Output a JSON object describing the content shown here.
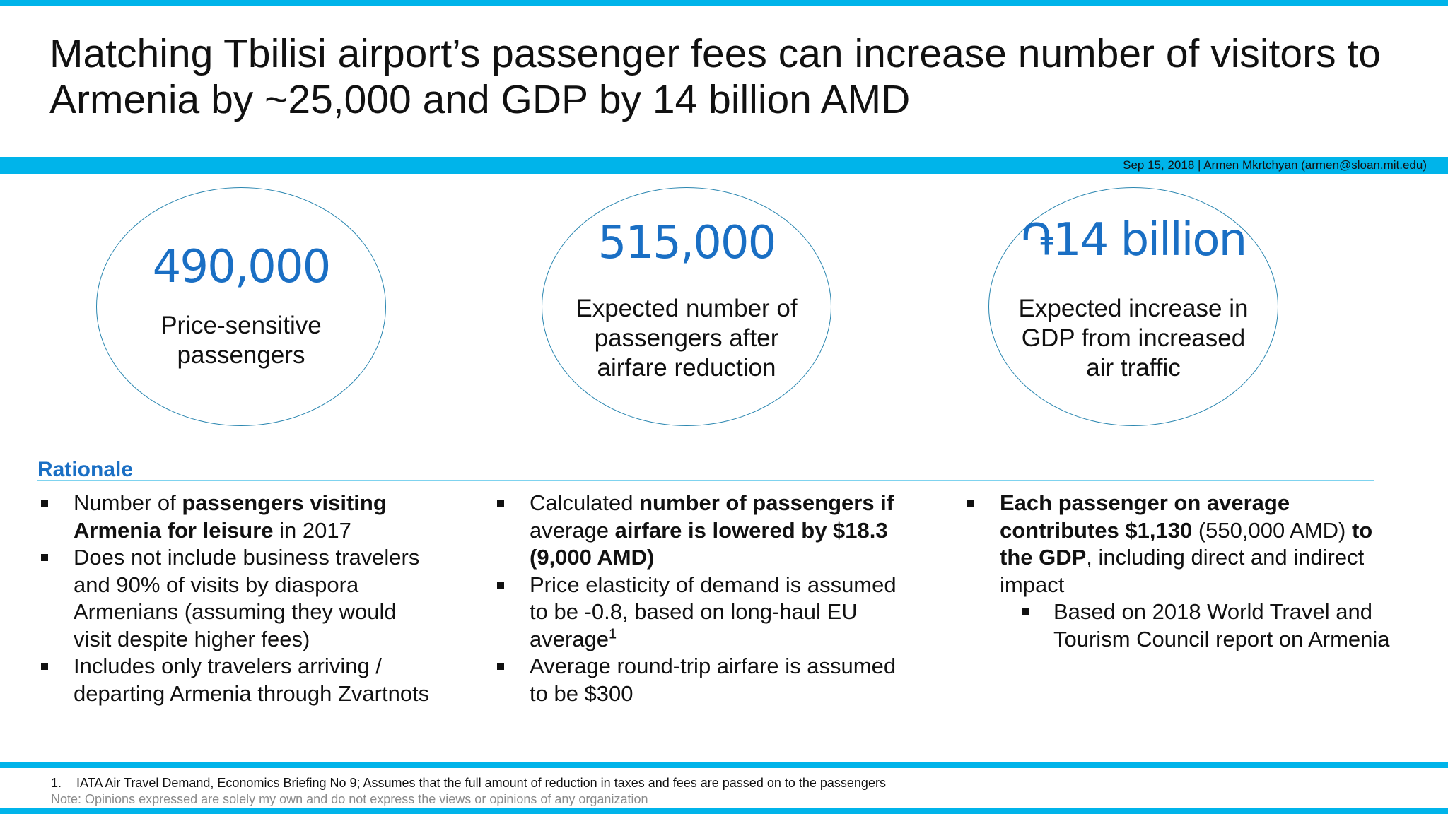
{
  "title": "Matching Tbilisi airport’s passenger fees can increase number of visitors to Armenia by ~25,000 and GDP by 14 billion AMD",
  "byline": "Sep 15, 2018  |  Armen Mkrtchyan (armen@sloan.mit.edu)",
  "colors": {
    "accent_bar": "#00b4ea",
    "figure_blue": "#1a6fc4",
    "circle_outline": "#2a86b0",
    "note_gray": "#8a8a8a"
  },
  "metrics": [
    {
      "figure": "490,000",
      "label": "Price-sensitive passengers"
    },
    {
      "figure": "515,000",
      "label": "Expected number of passengers after airfare reduction"
    },
    {
      "figure": "֏14 billion",
      "label": "Expected increase in GDP from increased air traffic"
    }
  ],
  "rationale": {
    "heading": "Rationale",
    "columns": [
      {
        "bullets": [
          {
            "t1": "Number of ",
            "b1": "passengers visiting Armenia for leisure",
            "t2": " in 2017"
          },
          {
            "text": "Does not include business travelers and 90% of visits by diaspora Armenians (assuming they would visit despite higher fees)"
          },
          {
            "text": "Includes only travelers arriving / departing Armenia through Zvartnots"
          }
        ]
      },
      {
        "bullets": [
          {
            "t1": "Calculated ",
            "b1": "number of passengers if",
            "t2": " average ",
            "b2": "airfare is lowered by $18.3 (9,000 AMD)"
          },
          {
            "text": "Price elasticity of demand is assumed to be -0.8, based on long-haul EU average",
            "sup": "1"
          },
          {
            "text": "Average round-trip airfare is assumed to be $300"
          }
        ]
      },
      {
        "bullets": [
          {
            "b1": "Each passenger on average contributes $1,130",
            "t1": " (550,000 AMD) ",
            "b2": "to the GDP",
            "t2": ", including direct and indirect impact"
          },
          {
            "text": "Based on 2018 World Travel and Tourism Council report on Armenia",
            "sub": true
          }
        ]
      }
    ]
  },
  "footnote": {
    "number": "1.",
    "text": "IATA Air Travel Demand, Economics Briefing No 9; Assumes that the full amount of reduction in taxes and fees are passed on to the passengers"
  },
  "note": "Note: Opinions expressed are solely my own and do not express the views or opinions of any organization"
}
